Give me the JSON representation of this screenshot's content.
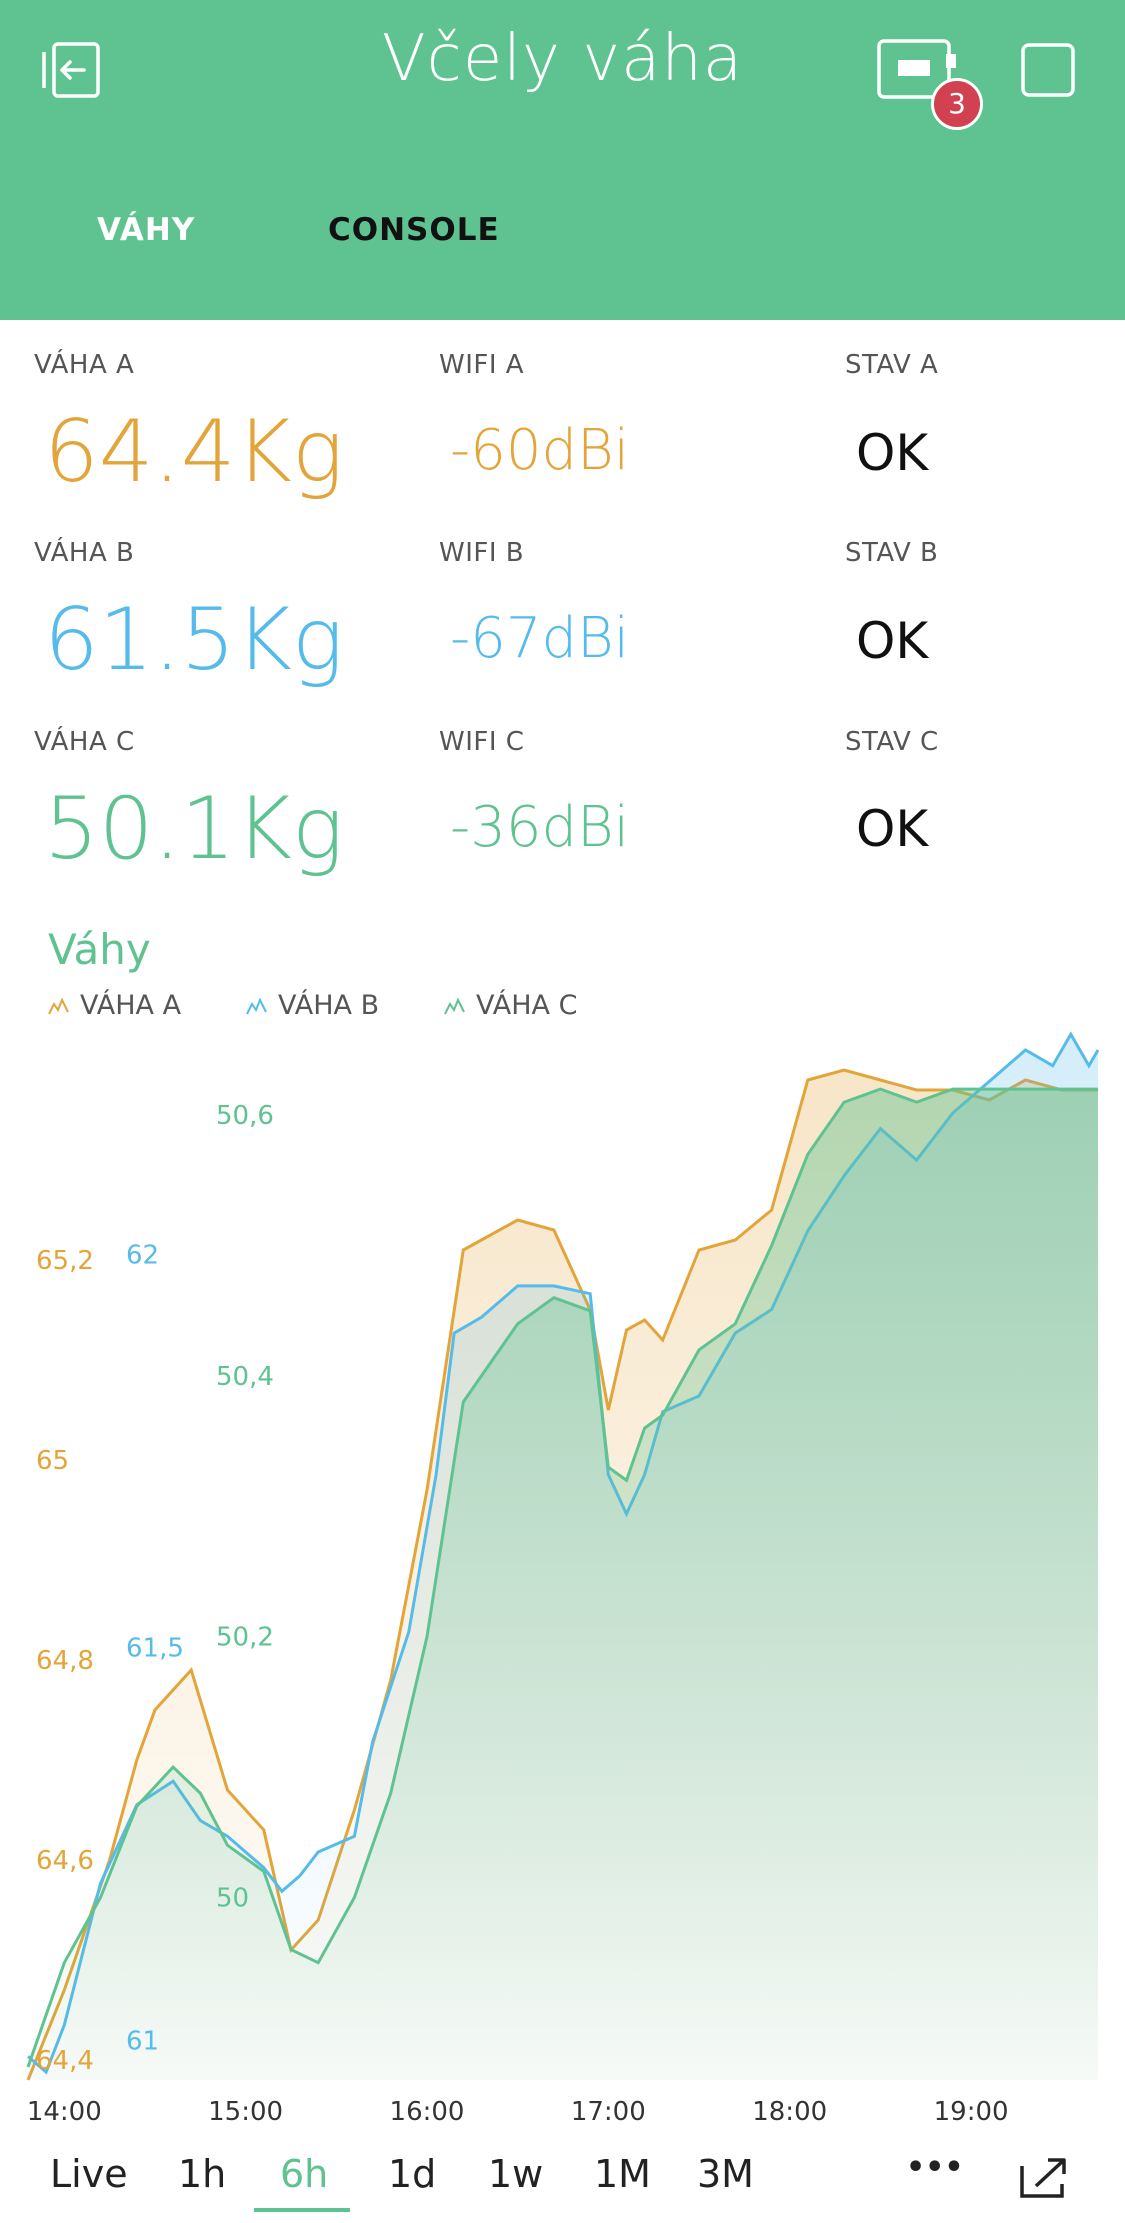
{
  "header": {
    "title": "Včely váha",
    "badge_count": "3",
    "tabs": [
      {
        "label": "VÁHY",
        "active": true
      },
      {
        "label": "CONSOLE",
        "active": false
      }
    ]
  },
  "colors": {
    "brand": "#5fc291",
    "series_a": "#e3a43a",
    "series_b": "#55bbea",
    "series_c": "#5fc291"
  },
  "rows": [
    {
      "weight_label": "VÁHA A",
      "weight_value": "64.4Kg",
      "wifi_label": "WIFI A",
      "wifi_value": "-60dBi",
      "state_label": "STAV A",
      "state_value": "OK"
    },
    {
      "weight_label": "VÁHA B",
      "weight_value": "61.5Kg",
      "wifi_label": "WIFI B",
      "wifi_value": "-67dBi",
      "state_label": "STAV B",
      "state_value": "OK"
    },
    {
      "weight_label": "VÁHA C",
      "weight_value": "50.1Kg",
      "wifi_label": "WIFI C",
      "wifi_value": "-36dBi",
      "state_label": "STAV C",
      "state_value": "OK"
    }
  ],
  "chart_data": {
    "type": "area",
    "title": "Váhy",
    "legend": [
      "VÁHA A",
      "VÁHA B",
      "VÁHA C"
    ],
    "x_ticks": [
      "14:00",
      "15:00",
      "16:00",
      "17:00",
      "18:00",
      "19:00"
    ],
    "x_range_hours": [
      13.8,
      19.7
    ],
    "axes": [
      {
        "series": "VÁHA A",
        "ticks": [
          "64,4",
          "64,6",
          "64,8",
          "65",
          "65,2"
        ],
        "range": [
          64.38,
          65.41
        ]
      },
      {
        "series": "VÁHA B",
        "ticks": [
          "61",
          "61,5",
          "62"
        ],
        "range": [
          60.95,
          62.26
        ]
      },
      {
        "series": "VÁHA C",
        "ticks": [
          "50",
          "50,2",
          "50,4",
          "50,6"
        ],
        "range": [
          49.86,
          50.65
        ]
      }
    ],
    "series": [
      {
        "name": "VÁHA A",
        "color": "#e3a43a",
        "x": [
          13.8,
          14.0,
          14.25,
          14.4,
          14.5,
          14.7,
          14.9,
          15.1,
          15.25,
          15.4,
          15.6,
          15.8,
          16.0,
          16.2,
          16.3,
          16.5,
          16.7,
          16.9,
          17.0,
          17.1,
          17.2,
          17.3,
          17.5,
          17.7,
          17.9,
          18.1,
          18.3,
          18.5,
          18.7,
          18.9,
          19.1,
          19.3,
          19.5,
          19.7
        ],
        "y": [
          64.38,
          64.47,
          64.6,
          64.7,
          64.75,
          64.79,
          64.67,
          64.63,
          64.51,
          64.54,
          64.65,
          64.78,
          64.97,
          65.21,
          65.22,
          65.24,
          65.23,
          65.15,
          65.05,
          65.13,
          65.14,
          65.12,
          65.21,
          65.22,
          65.25,
          65.38,
          65.39,
          65.38,
          65.37,
          65.37,
          65.36,
          65.38,
          65.37,
          65.37
        ]
      },
      {
        "name": "VÁHA B",
        "color": "#55bbea",
        "x": [
          13.8,
          13.9,
          14.0,
          14.2,
          14.4,
          14.6,
          14.75,
          14.9,
          15.1,
          15.2,
          15.3,
          15.4,
          15.5,
          15.6,
          15.7,
          15.9,
          16.05,
          16.15,
          16.3,
          16.5,
          16.7,
          16.9,
          17.0,
          17.1,
          17.2,
          17.3,
          17.5,
          17.7,
          17.9,
          18.1,
          18.3,
          18.5,
          18.7,
          18.9,
          19.1,
          19.3,
          19.45,
          19.55,
          19.65,
          19.7
        ],
        "y": [
          60.98,
          60.96,
          61.02,
          61.2,
          61.3,
          61.33,
          61.28,
          61.26,
          61.22,
          61.19,
          61.21,
          61.24,
          61.25,
          61.26,
          61.38,
          61.52,
          61.72,
          61.9,
          61.92,
          61.96,
          61.96,
          61.95,
          61.72,
          61.67,
          61.72,
          61.8,
          61.82,
          61.9,
          61.93,
          62.03,
          62.1,
          62.16,
          62.12,
          62.18,
          62.22,
          62.26,
          62.24,
          62.28,
          62.24,
          62.26
        ]
      },
      {
        "name": "VÁHA C",
        "color": "#5fc291",
        "x": [
          13.8,
          14.0,
          14.2,
          14.4,
          14.6,
          14.75,
          14.9,
          15.1,
          15.25,
          15.4,
          15.6,
          15.8,
          16.0,
          16.2,
          16.3,
          16.5,
          16.7,
          16.9,
          17.0,
          17.1,
          17.2,
          17.3,
          17.5,
          17.7,
          17.9,
          18.1,
          18.3,
          18.5,
          18.7,
          18.9,
          19.1,
          19.3,
          19.5,
          19.7
        ],
        "y": [
          49.87,
          49.95,
          50.0,
          50.07,
          50.1,
          50.08,
          50.04,
          50.02,
          49.96,
          49.95,
          50.0,
          50.08,
          50.2,
          50.38,
          50.4,
          50.44,
          50.46,
          50.45,
          50.33,
          50.32,
          50.36,
          50.37,
          50.42,
          50.44,
          50.5,
          50.57,
          50.61,
          50.62,
          50.61,
          50.62,
          50.62,
          50.62,
          50.62,
          50.62
        ]
      }
    ]
  },
  "range_bar": {
    "items": [
      "Live",
      "1h",
      "6h",
      "1d",
      "1w",
      "1M",
      "3M"
    ],
    "active": "6h",
    "more_label": "•••"
  }
}
